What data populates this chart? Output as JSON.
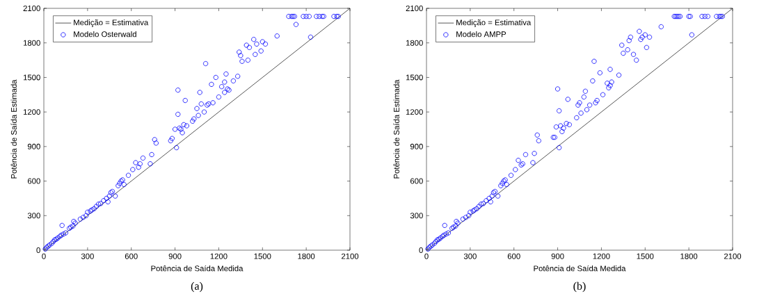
{
  "chart_data": [
    {
      "type": "scatter",
      "xlabel": "Potência de Saída Medida",
      "ylabel": "Potência de Saída Estimada",
      "annotations": [
        "(a)"
      ],
      "xlim": [
        0,
        2100
      ],
      "ylim": [
        0,
        2100
      ],
      "xticks": [
        0,
        300,
        600,
        900,
        1200,
        1500,
        1800,
        2100
      ],
      "yticks": [
        0,
        300,
        600,
        900,
        1200,
        1500,
        1800,
        2100
      ],
      "legend": "top left",
      "series": [
        {
          "name": "Medição = Estimativa",
          "type": "line",
          "color": "#000000",
          "x": [
            0,
            2100
          ],
          "values": [
            0,
            2100
          ]
        },
        {
          "name": "Modelo Osterwald",
          "marker": "circle",
          "color": "#0000ff",
          "x": [
            10,
            20,
            30,
            40,
            55,
            65,
            75,
            85,
            95,
            110,
            120,
            125,
            135,
            150,
            175,
            185,
            200,
            205,
            215,
            250,
            270,
            290,
            300,
            320,
            330,
            345,
            360,
            375,
            390,
            410,
            430,
            440,
            450,
            460,
            470,
            490,
            510,
            520,
            530,
            540,
            550,
            580,
            610,
            630,
            650,
            660,
            680,
            730,
            740,
            760,
            770,
            870,
            880,
            900,
            910,
            920,
            920,
            930,
            940,
            950,
            960,
            970,
            980,
            1020,
            1030,
            1050,
            1060,
            1070,
            1080,
            1100,
            1110,
            1120,
            1130,
            1150,
            1160,
            1180,
            1200,
            1220,
            1240,
            1240,
            1250,
            1260,
            1270,
            1300,
            1330,
            1340,
            1350,
            1360,
            1390,
            1400,
            1410,
            1440,
            1450,
            1460,
            1490,
            1500,
            1520,
            1600,
            1680,
            1700,
            1710,
            1720,
            1730,
            1780,
            1800,
            1820,
            1830,
            1870,
            1890,
            1910,
            1920,
            1990,
            2010,
            2020
          ],
          "values": [
            10,
            25,
            35,
            45,
            60,
            75,
            90,
            95,
            105,
            120,
            130,
            215,
            140,
            150,
            190,
            200,
            210,
            250,
            235,
            270,
            285,
            300,
            330,
            340,
            350,
            360,
            380,
            400,
            405,
            430,
            450,
            420,
            470,
            500,
            510,
            470,
            560,
            580,
            600,
            610,
            570,
            650,
            700,
            760,
            720,
            750,
            800,
            750,
            830,
            960,
            930,
            950,
            970,
            1050,
            890,
            1180,
            1390,
            1060,
            1050,
            1020,
            1090,
            1300,
            1080,
            1120,
            1140,
            1230,
            1170,
            1370,
            1270,
            1200,
            1620,
            1260,
            1270,
            1440,
            1280,
            1500,
            1330,
            1420,
            1370,
            1460,
            1530,
            1400,
            1390,
            1470,
            1510,
            1720,
            1690,
            1640,
            1780,
            1650,
            1760,
            1830,
            1700,
            1790,
            1730,
            1810,
            1790,
            1860,
            2030,
            2030,
            2030,
            2030,
            1960,
            2030,
            2030,
            2030,
            1850,
            2030,
            2030,
            2030,
            2030,
            2030,
            2030,
            2030
          ]
        }
      ]
    },
    {
      "type": "scatter",
      "xlabel": "Potência de Saída Medida",
      "ylabel": "Potência de Saída Estimada",
      "annotations": [
        "(b)"
      ],
      "xlim": [
        0,
        2100
      ],
      "ylim": [
        0,
        2100
      ],
      "xticks": [
        0,
        300,
        600,
        900,
        1200,
        1500,
        1800,
        2100
      ],
      "yticks": [
        0,
        300,
        600,
        900,
        1200,
        1500,
        1800,
        2100
      ],
      "legend": "top left",
      "series": [
        {
          "name": "Medição = Estimativa",
          "type": "line",
          "color": "#000000",
          "x": [
            0,
            2100
          ],
          "values": [
            0,
            2100
          ]
        },
        {
          "name": "Modelo AMPP",
          "marker": "circle",
          "color": "#0000ff",
          "x": [
            10,
            20,
            30,
            40,
            55,
            65,
            75,
            85,
            95,
            110,
            120,
            125,
            135,
            150,
            175,
            185,
            200,
            205,
            215,
            250,
            270,
            290,
            300,
            320,
            330,
            345,
            360,
            375,
            390,
            410,
            430,
            440,
            450,
            460,
            470,
            490,
            510,
            520,
            530,
            540,
            550,
            580,
            610,
            630,
            650,
            660,
            680,
            730,
            740,
            760,
            770,
            870,
            880,
            890,
            900,
            910,
            910,
            920,
            930,
            940,
            960,
            970,
            980,
            1030,
            1040,
            1050,
            1060,
            1080,
            1090,
            1100,
            1120,
            1140,
            1150,
            1160,
            1170,
            1190,
            1210,
            1240,
            1250,
            1260,
            1260,
            1270,
            1320,
            1340,
            1350,
            1380,
            1390,
            1400,
            1420,
            1440,
            1460,
            1470,
            1480,
            1500,
            1510,
            1530,
            1610,
            1700,
            1710,
            1720,
            1730,
            1740,
            1800,
            1810,
            1820,
            1890,
            1910,
            1930,
            1990,
            2010,
            2020,
            2030
          ],
          "values": [
            10,
            25,
            35,
            45,
            60,
            75,
            90,
            95,
            105,
            120,
            130,
            215,
            140,
            150,
            190,
            200,
            210,
            250,
            235,
            270,
            285,
            300,
            330,
            340,
            350,
            360,
            380,
            400,
            405,
            430,
            450,
            420,
            470,
            500,
            510,
            470,
            560,
            580,
            600,
            610,
            570,
            650,
            700,
            780,
            740,
            750,
            830,
            760,
            840,
            1000,
            950,
            980,
            980,
            1070,
            1400,
            1210,
            890,
            1080,
            1030,
            1060,
            1100,
            1310,
            1090,
            1150,
            1260,
            1280,
            1190,
            1330,
            1380,
            1220,
            1260,
            1470,
            1640,
            1280,
            1300,
            1540,
            1350,
            1450,
            1410,
            1430,
            1570,
            1460,
            1520,
            1780,
            1710,
            1740,
            1820,
            1850,
            1700,
            1650,
            1900,
            1830,
            1850,
            1870,
            1760,
            1850,
            1940,
            2030,
            2030,
            2030,
            2030,
            2030,
            2030,
            2030,
            1870,
            2030,
            2030,
            2030,
            2030,
            2030,
            2030,
            2030
          ]
        }
      ]
    }
  ]
}
